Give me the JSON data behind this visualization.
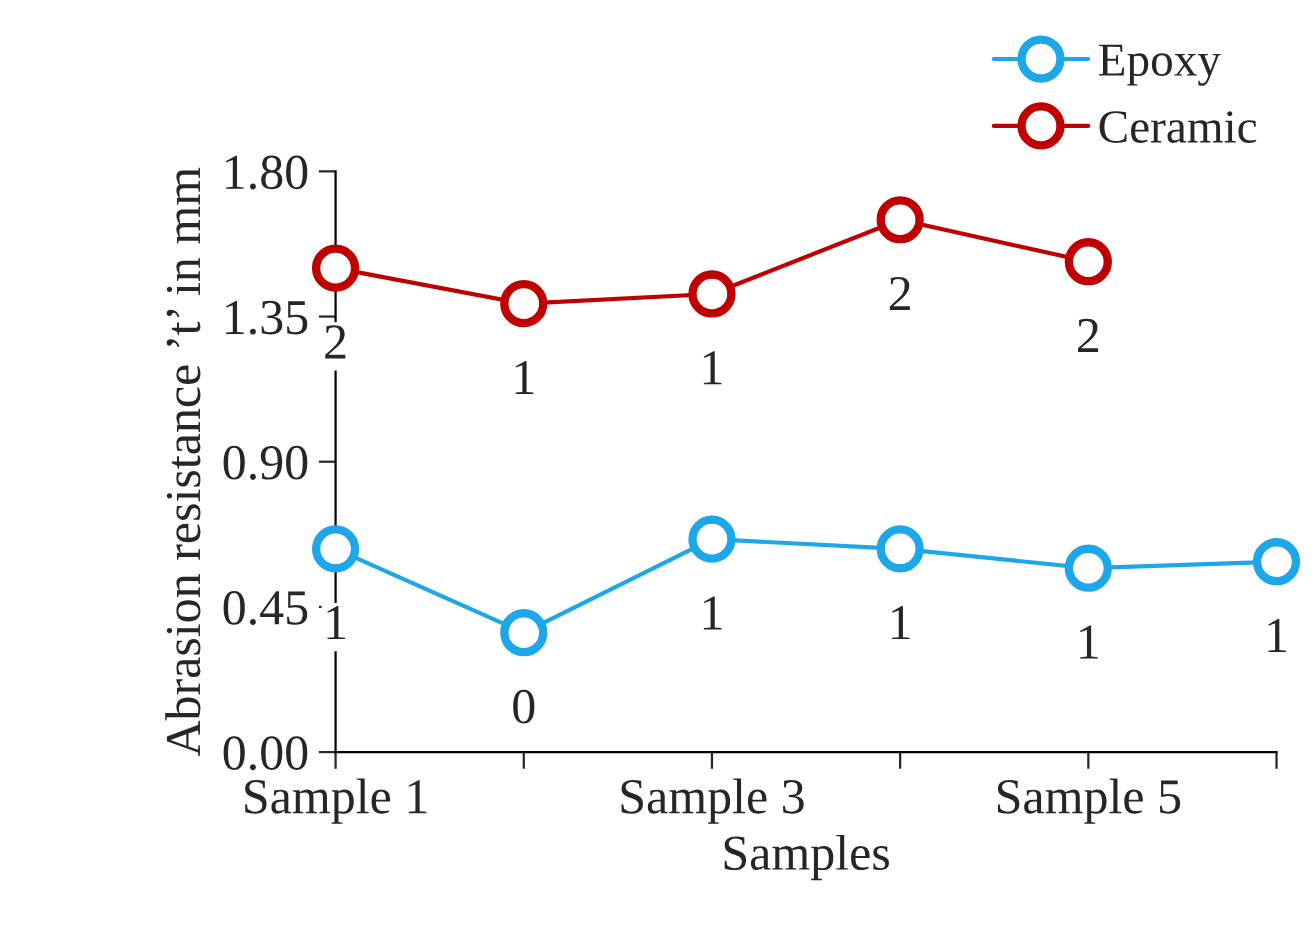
{
  "chart_data": {
    "type": "line",
    "xlabel": "Samples",
    "ylabel": "Abrasion resistance ’t’ in mm",
    "categories": [
      "Sample 1",
      null,
      "Sample 3",
      null,
      "Sample 5",
      null
    ],
    "series": [
      {
        "name": "Epoxy",
        "color": "#1ea7e8",
        "values": [
          0.63,
          0.37,
          0.66,
          0.63,
          0.57,
          0.59
        ],
        "value_labels": [
          "1",
          "0",
          "1",
          "1",
          "1",
          "1"
        ]
      },
      {
        "name": "Ceramic",
        "color": "#c00000",
        "values": [
          1.5,
          1.39,
          1.42,
          1.65,
          1.52,
          null
        ],
        "value_labels": [
          "2",
          "1",
          "1",
          "2",
          "2",
          null
        ]
      }
    ],
    "ylim": [
      0,
      1.8
    ],
    "yticks": [
      {
        "value": 0,
        "label": "0.00"
      },
      {
        "value": 0.45,
        "label": "0.45"
      },
      {
        "value": 0.9,
        "label": "0.90"
      },
      {
        "value": 1.35,
        "label": "1.35"
      },
      {
        "value": 1.8,
        "label": "1.80"
      }
    ],
    "legend": "top right",
    "marker": "circle",
    "line_style": "solid",
    "grid": false
  }
}
